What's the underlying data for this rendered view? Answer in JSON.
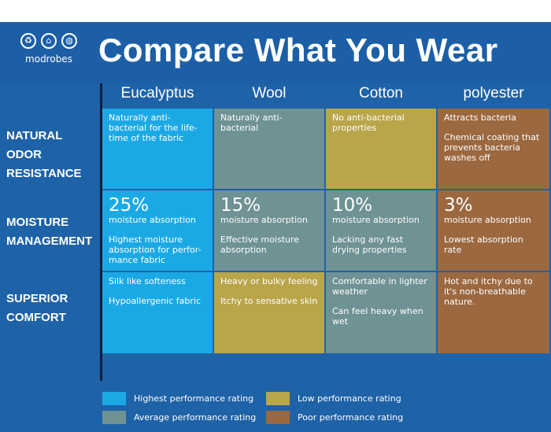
{
  "header": {
    "title": "Compare What You Wear",
    "logo_text": "modrobes",
    "logo_icons": [
      "recycle-icon",
      "pagoda-icon",
      "globe-icon"
    ]
  },
  "columns": [
    "Eucalyptus",
    "Wool",
    "Cotton",
    "polyester"
  ],
  "rows": [
    {
      "label": "Natural Odor Resistance",
      "cells": [
        {
          "big": "",
          "sub": "",
          "notes": [
            "Naturally anti-bacterial for the life-time of the fabric"
          ],
          "rating": "highest"
        },
        {
          "big": "",
          "sub": "",
          "notes": [
            "Naturally anti-bacterial"
          ],
          "rating": "average"
        },
        {
          "big": "",
          "sub": "",
          "notes": [
            "No anti-bacterial properties"
          ],
          "rating": "low"
        },
        {
          "big": "",
          "sub": "",
          "notes": [
            "Attracts bacteria",
            "Chemical coating that prevents bacteria washes off"
          ],
          "rating": "poor"
        }
      ]
    },
    {
      "label": "Moisture Management",
      "cells": [
        {
          "big": "25%",
          "sub": "moisture absorption",
          "notes": [
            "Highest moisture absorption for perfor-mance fabric"
          ],
          "rating": "highest"
        },
        {
          "big": "15%",
          "sub": "moisture absorption",
          "notes": [
            "Effective moisture absorption"
          ],
          "rating": "average"
        },
        {
          "big": "10%",
          "sub": "moisture absorption",
          "notes": [
            "Lacking any fast drying properties"
          ],
          "rating": "average"
        },
        {
          "big": "3%",
          "sub": "moisture absorption",
          "notes": [
            "Lowest absorption rate"
          ],
          "rating": "poor"
        }
      ]
    },
    {
      "label": "Superior Comfort",
      "cells": [
        {
          "big": "",
          "sub": "",
          "notes": [
            "Silk like softeness",
            "Hypoallergenic fabric"
          ],
          "rating": "highest"
        },
        {
          "big": "",
          "sub": "",
          "notes": [
            "Heavy or bulky feeling",
            "Itchy to sensative skin"
          ],
          "rating": "low"
        },
        {
          "big": "",
          "sub": "",
          "notes": [
            "Comfortable in lighter weather",
            "Can feel heavy when wet"
          ],
          "rating": "average"
        },
        {
          "big": "",
          "sub": "",
          "notes": [
            "Hot and itchy due to it's non-breathable nature."
          ],
          "rating": "poor"
        }
      ]
    }
  ],
  "legend": [
    {
      "label": "Highest performance rating",
      "color": "#1ba9e6"
    },
    {
      "label": "Low performance rating",
      "color": "#b9a54a"
    },
    {
      "label": "Average performance rating",
      "color": "#6f9294"
    },
    {
      "label": "Poor performance rating",
      "color": "#9b6840"
    }
  ],
  "colors": {
    "highest": "#1ba9e6",
    "average": "#6f9294",
    "low": "#b9a54a",
    "poor": "#9b6840",
    "background": "#1e62a8"
  }
}
